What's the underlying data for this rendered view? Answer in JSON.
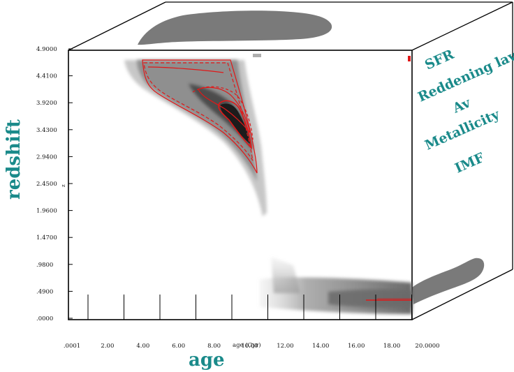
{
  "colors": {
    "label_teal": "#1a8a8a",
    "contour_red": "#e01818",
    "density_dark": "#222222",
    "density_mid": "#8a8a8a",
    "projection_gray": "#7a7a7a",
    "axis_black": "#000000"
  },
  "plot": {
    "y_axis_title": "redshift",
    "y_axis_small_label": "z",
    "x_axis_title": "age",
    "x_axis_small_label": "age (Gyr)",
    "y_ticks": [
      ".0000",
      ".4900",
      ".9800",
      "1.4700",
      "1.9600",
      "2.4500",
      "2.9400",
      "3.4300",
      "3.9200",
      "4.4100",
      "4.9000"
    ],
    "x_ticks": [
      ".0001",
      "2.00",
      "4.00",
      "6.00",
      "8.00",
      "10.00",
      "12.00",
      "14.00",
      "16.00",
      "18.00",
      "20.0000"
    ]
  },
  "side_panel": {
    "parameters": [
      "SFR",
      "Reddening law",
      "Av",
      "Metallicity",
      "IMF"
    ]
  }
}
